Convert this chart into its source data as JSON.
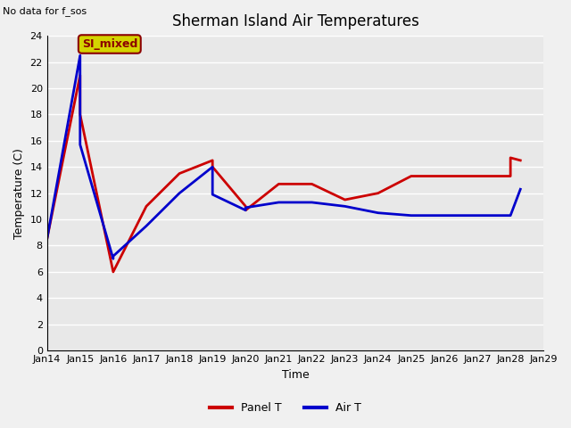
{
  "title": "Sherman Island Air Temperatures",
  "xlabel": "Time",
  "ylabel": "Temperature (C)",
  "no_data_text": "No data for f_sos",
  "annotation_text": "SI_mixed",
  "xlim": [
    0,
    15
  ],
  "ylim": [
    0,
    24
  ],
  "yticks": [
    0,
    2,
    4,
    6,
    8,
    10,
    12,
    14,
    16,
    18,
    20,
    22,
    24
  ],
  "xtick_positions": [
    0,
    1,
    2,
    3,
    4,
    5,
    6,
    7,
    8,
    9,
    10,
    11,
    12,
    13,
    14,
    15
  ],
  "xtick_labels": [
    "Jan 14",
    "Jan 15",
    "Jan 16",
    "Jan 17",
    "Jan 18",
    "Jan 19",
    "Jan 20",
    "Jan 21",
    "Jan 22",
    "Jan 23",
    "Jan 24",
    "Jan 25",
    "Jan 26",
    "Jan 27",
    "Jan 28",
    "Jan 29"
  ],
  "panel_T_x": [
    0,
    1,
    1,
    2,
    3,
    4,
    5,
    5,
    6,
    6,
    7,
    8,
    9,
    10,
    11,
    14,
    14,
    14.3
  ],
  "panel_T_y": [
    8.5,
    21.0,
    18.0,
    6.0,
    11.0,
    13.5,
    14.5,
    14.0,
    11.0,
    10.7,
    12.7,
    12.7,
    11.5,
    12.0,
    13.3,
    13.3,
    14.7,
    14.5
  ],
  "air_T_x": [
    0,
    1,
    1,
    2,
    2,
    3,
    4,
    5,
    5,
    6,
    6,
    7,
    8,
    9,
    10,
    11,
    14,
    14.3
  ],
  "air_T_y": [
    8.5,
    22.5,
    15.7,
    7.0,
    7.2,
    9.5,
    12.0,
    14.0,
    11.9,
    10.7,
    10.9,
    11.3,
    11.3,
    11.0,
    10.5,
    10.3,
    10.3,
    12.3
  ],
  "panel_color": "#cc0000",
  "air_color": "#0000cc",
  "fig_facecolor": "#f0f0f0",
  "plot_bg_color": "#e8e8e8",
  "grid_color": "#ffffff",
  "title_fontsize": 12,
  "axis_label_fontsize": 9,
  "tick_fontsize": 8,
  "legend_fontsize": 9,
  "annotation_bg": "#d4d400",
  "annotation_border": "#8b0000",
  "annotation_text_color": "#8b0000",
  "line_width": 2.0
}
